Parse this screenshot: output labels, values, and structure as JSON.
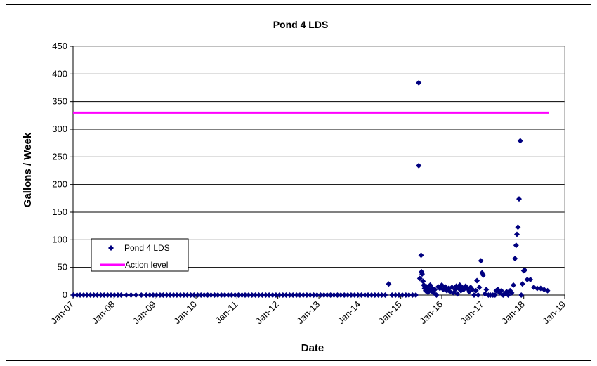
{
  "chart_data": {
    "type": "scatter",
    "title": "Pond 4 LDS",
    "xlabel": "Date",
    "ylabel": "Gallons / Week",
    "ylim": [
      0,
      450
    ],
    "yticks": [
      0,
      50,
      100,
      150,
      200,
      250,
      300,
      350,
      400,
      450
    ],
    "xlim": [
      "2007-01-01",
      "2019-01-01"
    ],
    "xticks": [
      {
        "date": "2007-01-01",
        "label": "Jan-07"
      },
      {
        "date": "2008-01-01",
        "label": "Jan-08"
      },
      {
        "date": "2009-01-01",
        "label": "Jan-09"
      },
      {
        "date": "2010-01-01",
        "label": "Jan-10"
      },
      {
        "date": "2011-01-01",
        "label": "Jan-11"
      },
      {
        "date": "2012-01-01",
        "label": "Jan-12"
      },
      {
        "date": "2013-01-01",
        "label": "Jan-13"
      },
      {
        "date": "2014-01-01",
        "label": "Jan-14"
      },
      {
        "date": "2015-01-01",
        "label": "Jan-15"
      },
      {
        "date": "2016-01-01",
        "label": "Jan-16"
      },
      {
        "date": "2017-01-01",
        "label": "Jan-17"
      },
      {
        "date": "2018-01-01",
        "label": "Jan-18"
      },
      {
        "date": "2019-01-01",
        "label": "Jan-19"
      }
    ],
    "grid": {
      "horizontal": true,
      "vertical": false
    },
    "legend_position": "bottom-left",
    "series": [
      {
        "name": "Pond 4 LDS",
        "kind": "scatter",
        "marker": "diamond",
        "color": "#000080",
        "points": [
          {
            "x": "2007-01-05",
            "y": 0
          },
          {
            "x": "2007-02-05",
            "y": 0
          },
          {
            "x": "2007-03-05",
            "y": 0
          },
          {
            "x": "2007-04-05",
            "y": 0
          },
          {
            "x": "2007-05-05",
            "y": 0
          },
          {
            "x": "2007-06-05",
            "y": 0
          },
          {
            "x": "2007-07-05",
            "y": 0
          },
          {
            "x": "2007-08-05",
            "y": 0
          },
          {
            "x": "2007-09-05",
            "y": 0
          },
          {
            "x": "2007-10-05",
            "y": 0
          },
          {
            "x": "2007-11-05",
            "y": 0
          },
          {
            "x": "2007-12-05",
            "y": 0
          },
          {
            "x": "2008-01-05",
            "y": 0
          },
          {
            "x": "2008-02-05",
            "y": 0
          },
          {
            "x": "2008-03-05",
            "y": 0
          },
          {
            "x": "2008-04-20",
            "y": 0
          },
          {
            "x": "2008-06-01",
            "y": 0
          },
          {
            "x": "2008-07-15",
            "y": 0
          },
          {
            "x": "2008-09-01",
            "y": 0
          },
          {
            "x": "2008-10-15",
            "y": 0
          },
          {
            "x": "2008-11-15",
            "y": 0
          },
          {
            "x": "2008-12-15",
            "y": 0
          },
          {
            "x": "2009-01-15",
            "y": 0
          },
          {
            "x": "2009-02-15",
            "y": 0
          },
          {
            "x": "2009-03-15",
            "y": 0
          },
          {
            "x": "2009-04-15",
            "y": 0
          },
          {
            "x": "2009-05-15",
            "y": 0
          },
          {
            "x": "2009-06-15",
            "y": 0
          },
          {
            "x": "2009-07-15",
            "y": 0
          },
          {
            "x": "2009-08-15",
            "y": 0
          },
          {
            "x": "2009-09-15",
            "y": 0
          },
          {
            "x": "2009-10-15",
            "y": 0
          },
          {
            "x": "2009-11-15",
            "y": 0
          },
          {
            "x": "2009-12-15",
            "y": 0
          },
          {
            "x": "2010-01-15",
            "y": 0
          },
          {
            "x": "2010-02-15",
            "y": 0
          },
          {
            "x": "2010-03-15",
            "y": 0
          },
          {
            "x": "2010-04-15",
            "y": 0
          },
          {
            "x": "2010-05-15",
            "y": 0
          },
          {
            "x": "2010-06-15",
            "y": 0
          },
          {
            "x": "2010-07-15",
            "y": 0
          },
          {
            "x": "2010-08-15",
            "y": 0
          },
          {
            "x": "2010-09-15",
            "y": 0
          },
          {
            "x": "2010-10-15",
            "y": 0
          },
          {
            "x": "2010-11-15",
            "y": 0
          },
          {
            "x": "2010-12-15",
            "y": 0
          },
          {
            "x": "2011-01-15",
            "y": 0
          },
          {
            "x": "2011-02-15",
            "y": 0
          },
          {
            "x": "2011-03-15",
            "y": 0
          },
          {
            "x": "2011-04-15",
            "y": 0
          },
          {
            "x": "2011-05-15",
            "y": 0
          },
          {
            "x": "2011-06-15",
            "y": 0
          },
          {
            "x": "2011-07-15",
            "y": 0
          },
          {
            "x": "2011-08-15",
            "y": 0
          },
          {
            "x": "2011-09-15",
            "y": 0
          },
          {
            "x": "2011-10-15",
            "y": 0
          },
          {
            "x": "2011-11-15",
            "y": 0
          },
          {
            "x": "2011-12-15",
            "y": 0
          },
          {
            "x": "2012-01-15",
            "y": 0
          },
          {
            "x": "2012-02-15",
            "y": 0
          },
          {
            "x": "2012-03-15",
            "y": 0
          },
          {
            "x": "2012-04-15",
            "y": 0
          },
          {
            "x": "2012-05-15",
            "y": 0
          },
          {
            "x": "2012-06-15",
            "y": 0
          },
          {
            "x": "2012-07-15",
            "y": 0
          },
          {
            "x": "2012-08-15",
            "y": 0
          },
          {
            "x": "2012-09-15",
            "y": 0
          },
          {
            "x": "2012-10-15",
            "y": 0
          },
          {
            "x": "2012-11-15",
            "y": 0
          },
          {
            "x": "2012-12-15",
            "y": 0
          },
          {
            "x": "2013-01-15",
            "y": 0
          },
          {
            "x": "2013-02-15",
            "y": 0
          },
          {
            "x": "2013-03-15",
            "y": 0
          },
          {
            "x": "2013-04-15",
            "y": 0
          },
          {
            "x": "2013-05-15",
            "y": 0
          },
          {
            "x": "2013-06-15",
            "y": 0
          },
          {
            "x": "2013-07-15",
            "y": 0
          },
          {
            "x": "2013-08-15",
            "y": 0
          },
          {
            "x": "2013-09-15",
            "y": 0
          },
          {
            "x": "2013-10-15",
            "y": 0
          },
          {
            "x": "2013-11-15",
            "y": 0
          },
          {
            "x": "2013-12-15",
            "y": 0
          },
          {
            "x": "2014-01-15",
            "y": 0
          },
          {
            "x": "2014-02-15",
            "y": 0
          },
          {
            "x": "2014-03-15",
            "y": 0
          },
          {
            "x": "2014-04-15",
            "y": 0
          },
          {
            "x": "2014-05-15",
            "y": 0
          },
          {
            "x": "2014-06-15",
            "y": 0
          },
          {
            "x": "2014-07-15",
            "y": 0
          },
          {
            "x": "2014-08-15",
            "y": 0
          },
          {
            "x": "2014-09-15",
            "y": 20
          },
          {
            "x": "2014-10-15",
            "y": 0
          },
          {
            "x": "2014-11-15",
            "y": 0
          },
          {
            "x": "2014-12-15",
            "y": 0
          },
          {
            "x": "2015-01-15",
            "y": 0
          },
          {
            "x": "2015-02-15",
            "y": 0
          },
          {
            "x": "2015-03-15",
            "y": 0
          },
          {
            "x": "2015-04-15",
            "y": 0
          },
          {
            "x": "2015-05-15",
            "y": 0
          },
          {
            "x": "2015-06-10",
            "y": 384
          },
          {
            "x": "2015-06-10",
            "y": 234
          },
          {
            "x": "2015-06-20",
            "y": 30
          },
          {
            "x": "2015-07-01",
            "y": 72
          },
          {
            "x": "2015-07-05",
            "y": 42
          },
          {
            "x": "2015-07-10",
            "y": 38
          },
          {
            "x": "2015-07-18",
            "y": 25
          },
          {
            "x": "2015-07-25",
            "y": 18
          },
          {
            "x": "2015-08-01",
            "y": 12
          },
          {
            "x": "2015-08-10",
            "y": 8
          },
          {
            "x": "2015-08-20",
            "y": 15
          },
          {
            "x": "2015-09-01",
            "y": 5
          },
          {
            "x": "2015-09-10",
            "y": 10
          },
          {
            "x": "2015-09-20",
            "y": 18
          },
          {
            "x": "2015-10-01",
            "y": 8
          },
          {
            "x": "2015-10-10",
            "y": 12
          },
          {
            "x": "2015-10-20",
            "y": 4
          },
          {
            "x": "2015-11-01",
            "y": 10
          },
          {
            "x": "2015-11-15",
            "y": 0
          },
          {
            "x": "2015-12-01",
            "y": 15
          },
          {
            "x": "2015-12-15",
            "y": 12
          },
          {
            "x": "2016-01-01",
            "y": 18
          },
          {
            "x": "2016-01-15",
            "y": 10
          },
          {
            "x": "2016-02-01",
            "y": 15
          },
          {
            "x": "2016-02-15",
            "y": 8
          },
          {
            "x": "2016-03-01",
            "y": 12
          },
          {
            "x": "2016-03-15",
            "y": 6
          },
          {
            "x": "2016-04-01",
            "y": 14
          },
          {
            "x": "2016-04-15",
            "y": 4
          },
          {
            "x": "2016-05-01",
            "y": 10
          },
          {
            "x": "2016-05-10",
            "y": 16
          },
          {
            "x": "2016-05-20",
            "y": 2
          },
          {
            "x": "2016-06-01",
            "y": 12
          },
          {
            "x": "2016-06-10",
            "y": 18
          },
          {
            "x": "2016-06-20",
            "y": 8
          },
          {
            "x": "2016-07-01",
            "y": 14
          },
          {
            "x": "2016-07-15",
            "y": 10
          },
          {
            "x": "2016-08-01",
            "y": 16
          },
          {
            "x": "2016-08-15",
            "y": 12
          },
          {
            "x": "2016-09-01",
            "y": 6
          },
          {
            "x": "2016-09-15",
            "y": 14
          },
          {
            "x": "2016-10-01",
            "y": 10
          },
          {
            "x": "2016-10-15",
            "y": 0
          },
          {
            "x": "2016-11-01",
            "y": 8
          },
          {
            "x": "2016-11-10",
            "y": 26
          },
          {
            "x": "2016-11-20",
            "y": 0
          },
          {
            "x": "2016-12-01",
            "y": 14
          },
          {
            "x": "2016-12-15",
            "y": 62
          },
          {
            "x": "2016-12-25",
            "y": 40
          },
          {
            "x": "2017-01-05",
            "y": 36
          },
          {
            "x": "2017-01-20",
            "y": 2
          },
          {
            "x": "2017-02-01",
            "y": 10
          },
          {
            "x": "2017-02-20",
            "y": 0
          },
          {
            "x": "2017-03-10",
            "y": 0
          },
          {
            "x": "2017-04-01",
            "y": 0
          },
          {
            "x": "2017-04-20",
            "y": 0
          },
          {
            "x": "2017-05-01",
            "y": 8
          },
          {
            "x": "2017-05-15",
            "y": 10
          },
          {
            "x": "2017-06-01",
            "y": 4
          },
          {
            "x": "2017-06-15",
            "y": 8
          },
          {
            "x": "2017-07-01",
            "y": 0
          },
          {
            "x": "2017-07-15",
            "y": 2
          },
          {
            "x": "2017-08-01",
            "y": 6
          },
          {
            "x": "2017-08-15",
            "y": 0
          },
          {
            "x": "2017-09-01",
            "y": 8
          },
          {
            "x": "2017-09-15",
            "y": 4
          },
          {
            "x": "2017-10-01",
            "y": 18
          },
          {
            "x": "2017-10-15",
            "y": 66
          },
          {
            "x": "2017-10-25",
            "y": 90
          },
          {
            "x": "2017-11-01",
            "y": 110
          },
          {
            "x": "2017-11-10",
            "y": 123
          },
          {
            "x": "2017-11-20",
            "y": 174
          },
          {
            "x": "2017-12-01",
            "y": 279
          },
          {
            "x": "2017-12-10",
            "y": 0
          },
          {
            "x": "2017-12-20",
            "y": 20
          },
          {
            "x": "2018-01-01",
            "y": 44
          },
          {
            "x": "2018-01-10",
            "y": 45
          },
          {
            "x": "2018-02-01",
            "y": 28
          },
          {
            "x": "2018-03-01",
            "y": 28
          },
          {
            "x": "2018-04-01",
            "y": 14
          },
          {
            "x": "2018-05-01",
            "y": 12
          },
          {
            "x": "2018-06-01",
            "y": 12
          },
          {
            "x": "2018-07-01",
            "y": 10
          },
          {
            "x": "2018-08-01",
            "y": 8
          }
        ]
      },
      {
        "name": "Action level",
        "kind": "line",
        "color": "#FF00FF",
        "points": [
          {
            "x": "2007-01-01",
            "y": 330
          },
          {
            "x": "2018-08-15",
            "y": 330
          }
        ]
      }
    ]
  }
}
